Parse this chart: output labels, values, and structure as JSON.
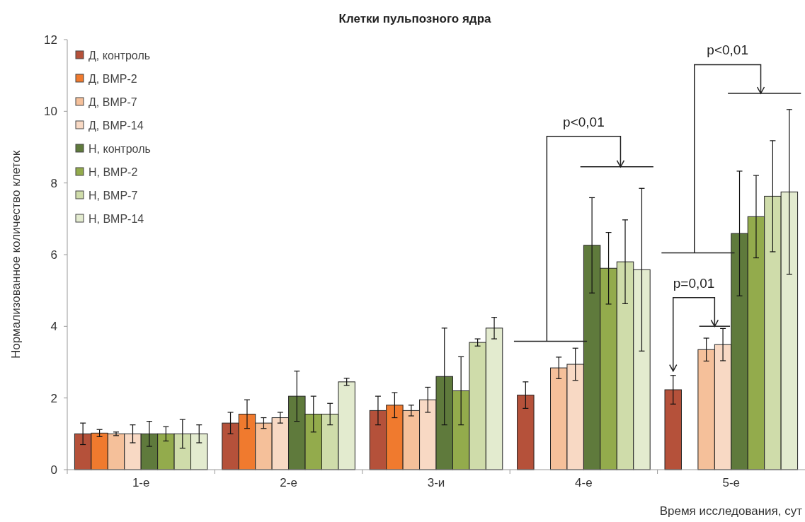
{
  "chart_data": {
    "type": "bar",
    "title": "Клетки пульпозного ядра",
    "xlabel": "Время исследования, сут",
    "ylabel": "Нормализованное количество клеток",
    "categories": [
      "1-е",
      "2-е",
      "3-и",
      "4-е",
      "5-е"
    ],
    "series": [
      {
        "name": "Д, контроль",
        "color": "#b5513a",
        "values": [
          1.0,
          1.3,
          1.65,
          2.08,
          2.23
        ],
        "errors": [
          0.3,
          0.3,
          0.4,
          0.37,
          0.4
        ]
      },
      {
        "name": "Д, BMP-2",
        "color": "#f07a2e",
        "values": [
          1.02,
          1.55,
          1.8,
          null,
          null
        ],
        "errors": [
          0.1,
          0.4,
          0.35,
          null,
          null
        ]
      },
      {
        "name": "Д, BMP-7",
        "color": "#f5c09a",
        "values": [
          1.0,
          1.3,
          1.65,
          2.84,
          3.35
        ],
        "errors": [
          0.05,
          0.15,
          0.15,
          0.3,
          0.32
        ]
      },
      {
        "name": "Д, BMP-14",
        "color": "#f8d9c4",
        "values": [
          1.0,
          1.45,
          1.95,
          2.94,
          3.49
        ],
        "errors": [
          0.25,
          0.15,
          0.35,
          0.45,
          0.45
        ]
      },
      {
        "name": "Н, контроль",
        "color": "#5f7a3c",
        "values": [
          1.0,
          2.05,
          2.6,
          6.26,
          6.59
        ],
        "errors": [
          0.35,
          0.7,
          1.35,
          1.33,
          1.74
        ]
      },
      {
        "name": "Н, BMP-2",
        "color": "#93ab4c",
        "values": [
          1.0,
          1.55,
          2.2,
          5.62,
          7.06
        ],
        "errors": [
          0.2,
          0.5,
          0.95,
          1.0,
          1.15
        ]
      },
      {
        "name": "Н, BMP-7",
        "color": "#cfdcaa",
        "values": [
          1.0,
          1.55,
          3.55,
          5.8,
          7.63
        ],
        "errors": [
          0.4,
          0.3,
          0.1,
          1.17,
          1.55
        ]
      },
      {
        "name": "Н, BMP-14",
        "color": "#e3ebcf",
        "values": [
          1.0,
          2.45,
          3.95,
          5.58,
          7.75
        ],
        "errors": [
          0.25,
          0.1,
          0.3,
          2.27,
          2.3
        ]
      }
    ],
    "ylim": [
      0,
      12
    ],
    "yticks": [
      0,
      2,
      4,
      6,
      8,
      10,
      12
    ],
    "grid": false,
    "legend": "top left",
    "annotations": [
      "p<0,01",
      "p<0,01",
      "p=0,01"
    ]
  }
}
